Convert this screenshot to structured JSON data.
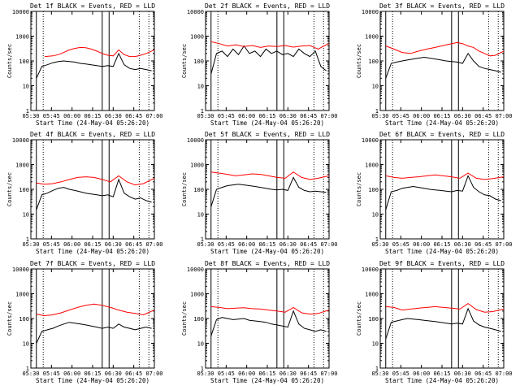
{
  "chart_data": [
    {
      "type": "line",
      "title": "Det 1f BLACK = Events, RED = LLD",
      "xlabel": "Start Time (24-May-04 05:26:20)",
      "ylabel": "Counts/sec",
      "log_y": true,
      "ylim": [
        1,
        10000
      ],
      "xlim": [
        "05:30",
        "07:00"
      ],
      "x_ticks": [
        "05:30",
        "05:45",
        "06:00",
        "06:15",
        "06:30",
        "06:45",
        "07:00"
      ],
      "y_ticks": [
        "1",
        "10",
        "100",
        "1000",
        "10000"
      ],
      "series": [
        {
          "color": "#000000",
          "x_minutes": [
            4,
            8,
            12,
            16,
            20,
            24,
            28,
            32,
            36,
            40,
            44,
            48,
            52,
            56,
            60,
            64,
            68,
            72,
            76,
            80,
            84,
            88
          ],
          "values": [
            20,
            60,
            70,
            85,
            95,
            100,
            95,
            90,
            80,
            75,
            70,
            65,
            60,
            65,
            60,
            200,
            70,
            50,
            45,
            50,
            45,
            40
          ]
        },
        {
          "color": "#ff0000",
          "x_minutes": [
            10,
            16,
            20,
            24,
            28,
            32,
            36,
            40,
            44,
            48,
            52,
            56,
            60,
            64,
            68,
            72,
            76,
            80,
            84,
            90
          ],
          "values": [
            150,
            160,
            180,
            220,
            280,
            320,
            350,
            340,
            300,
            250,
            200,
            170,
            160,
            280,
            180,
            150,
            150,
            170,
            200,
            280
          ]
        }
      ],
      "markers": {
        "solid": [
          4,
          52,
          57
        ],
        "dashed": [
          9,
          79,
          86
        ]
      }
    },
    {
      "type": "line",
      "title": "Det 2f BLACK = Events, RED = LLD",
      "xlabel": "Start Time (24-May-04 05:26:20)",
      "ylabel": "Counts/sec",
      "log_y": true,
      "ylim": [
        1,
        10000
      ],
      "xlim": [
        "05:30",
        "07:00"
      ],
      "x_ticks": [
        "05:30",
        "05:45",
        "06:00",
        "06:15",
        "06:30",
        "06:45",
        "07:00"
      ],
      "y_ticks": [
        "1",
        "10",
        "100",
        "1000",
        "10000"
      ],
      "series": [
        {
          "color": "#000000",
          "x_minutes": [
            4,
            8,
            12,
            16,
            20,
            24,
            28,
            32,
            36,
            40,
            44,
            48,
            52,
            56,
            60,
            64,
            68,
            72,
            76,
            80,
            84,
            88
          ],
          "values": [
            30,
            200,
            250,
            150,
            300,
            180,
            400,
            200,
            250,
            150,
            300,
            200,
            250,
            180,
            200,
            150,
            300,
            200,
            150,
            250,
            60,
            40
          ]
        },
        {
          "color": "#ff0000",
          "x_minutes": [
            4,
            10,
            16,
            22,
            28,
            34,
            40,
            46,
            52,
            58,
            64,
            70,
            76,
            82,
            88,
            90
          ],
          "values": [
            600,
            500,
            400,
            450,
            380,
            420,
            350,
            400,
            380,
            420,
            360,
            400,
            420,
            300,
            450,
            500
          ]
        }
      ],
      "markers": {
        "solid": [
          4,
          52,
          57
        ],
        "dashed": [
          9,
          79,
          86
        ]
      }
    },
    {
      "type": "line",
      "title": "Det 3f BLACK = Events, RED = LLD",
      "xlabel": "Start Time (24-May-04 05:26:20)",
      "ylabel": "Counts/sec",
      "log_y": true,
      "ylim": [
        1,
        10000
      ],
      "xlim": [
        "05:30",
        "07:00"
      ],
      "x_ticks": [
        "05:30",
        "05:45",
        "06:00",
        "06:15",
        "06:30",
        "06:45",
        "07:00"
      ],
      "y_ticks": [
        "1",
        "10",
        "100",
        "1000",
        "10000"
      ],
      "series": [
        {
          "color": "#000000",
          "x_minutes": [
            4,
            8,
            12,
            16,
            20,
            24,
            28,
            32,
            36,
            40,
            44,
            48,
            52,
            56,
            60,
            64,
            68,
            72,
            76,
            80,
            84,
            88
          ],
          "values": [
            20,
            80,
            90,
            100,
            110,
            120,
            130,
            140,
            130,
            120,
            110,
            100,
            95,
            90,
            80,
            200,
            100,
            60,
            50,
            45,
            40,
            35
          ]
        },
        {
          "color": "#ff0000",
          "x_minutes": [
            4,
            10,
            16,
            22,
            28,
            34,
            40,
            46,
            52,
            56,
            60,
            64,
            68,
            72,
            76,
            80,
            84,
            90
          ],
          "values": [
            400,
            300,
            220,
            200,
            250,
            300,
            350,
            420,
            500,
            550,
            500,
            400,
            350,
            250,
            200,
            160,
            170,
            250
          ]
        }
      ],
      "markers": {
        "solid": [
          4,
          52,
          57
        ],
        "dashed": [
          9,
          79,
          86
        ]
      }
    },
    {
      "type": "line",
      "title": "Det 4f BLACK = Events, RED = LLD",
      "xlabel": "Start Time (24-May-04 05:26:20)",
      "ylabel": "Counts/sec",
      "log_y": true,
      "ylim": [
        1,
        10000
      ],
      "xlim": [
        "05:30",
        "07:00"
      ],
      "x_ticks": [
        "05:30",
        "05:45",
        "06:00",
        "06:15",
        "06:30",
        "06:45",
        "07:00"
      ],
      "y_ticks": [
        "1",
        "10",
        "100",
        "1000",
        "10000"
      ],
      "series": [
        {
          "color": "#000000",
          "x_minutes": [
            4,
            8,
            12,
            16,
            20,
            24,
            28,
            32,
            36,
            40,
            44,
            48,
            52,
            56,
            60,
            64,
            68,
            72,
            76,
            80,
            84,
            88
          ],
          "values": [
            15,
            60,
            70,
            90,
            110,
            120,
            100,
            90,
            80,
            70,
            65,
            60,
            55,
            60,
            50,
            250,
            70,
            50,
            40,
            45,
            35,
            30
          ]
        },
        {
          "color": "#ff0000",
          "x_minutes": [
            4,
            10,
            16,
            22,
            28,
            34,
            40,
            46,
            52,
            58,
            64,
            70,
            76,
            82,
            90
          ],
          "values": [
            180,
            160,
            170,
            200,
            250,
            300,
            320,
            300,
            250,
            200,
            350,
            200,
            150,
            170,
            280
          ]
        }
      ],
      "markers": {
        "solid": [
          4,
          52,
          57
        ],
        "dashed": [
          9,
          79,
          86
        ]
      }
    },
    {
      "type": "line",
      "title": "Det 5f BLACK = Events, RED = LLD",
      "xlabel": "Start Time (24-May-04 05:26:20)",
      "ylabel": "Counts/sec",
      "log_y": true,
      "ylim": [
        1,
        10000
      ],
      "xlim": [
        "05:30",
        "07:00"
      ],
      "x_ticks": [
        "05:30",
        "05:45",
        "06:00",
        "06:15",
        "06:30",
        "06:45",
        "07:00"
      ],
      "y_ticks": [
        "1",
        "10",
        "100",
        "1000",
        "10000"
      ],
      "series": [
        {
          "color": "#000000",
          "x_minutes": [
            4,
            8,
            12,
            16,
            20,
            24,
            28,
            32,
            36,
            40,
            44,
            48,
            52,
            56,
            60,
            64,
            68,
            72,
            76,
            80,
            84,
            88
          ],
          "values": [
            20,
            100,
            120,
            140,
            150,
            160,
            150,
            140,
            130,
            120,
            110,
            100,
            95,
            100,
            90,
            300,
            120,
            90,
            80,
            85,
            80,
            75
          ]
        },
        {
          "color": "#ff0000",
          "x_minutes": [
            4,
            10,
            16,
            22,
            28,
            34,
            40,
            46,
            52,
            58,
            64,
            70,
            76,
            82,
            90
          ],
          "values": [
            500,
            450,
            400,
            350,
            380,
            420,
            400,
            350,
            300,
            280,
            500,
            300,
            250,
            280,
            350
          ]
        }
      ],
      "markers": {
        "solid": [
          4,
          52,
          57
        ],
        "dashed": [
          9,
          79,
          86
        ]
      }
    },
    {
      "type": "line",
      "title": "Det 6f BLACK = Events, RED = LLD",
      "xlabel": "Start Time (24-May-04 05:26:20)",
      "ylabel": "Counts/sec",
      "log_y": true,
      "ylim": [
        1,
        10000
      ],
      "xlim": [
        "05:30",
        "07:00"
      ],
      "x_ticks": [
        "05:30",
        "05:45",
        "06:00",
        "06:15",
        "06:30",
        "06:45",
        "07:00"
      ],
      "y_ticks": [
        "1",
        "10",
        "100",
        "1000",
        "10000"
      ],
      "series": [
        {
          "color": "#000000",
          "x_minutes": [
            4,
            8,
            12,
            16,
            20,
            24,
            28,
            32,
            36,
            40,
            44,
            48,
            52,
            56,
            60,
            64,
            68,
            72,
            76,
            80,
            84,
            88
          ],
          "values": [
            15,
            80,
            90,
            110,
            120,
            130,
            120,
            110,
            100,
            95,
            90,
            85,
            80,
            90,
            85,
            350,
            120,
            80,
            60,
            55,
            40,
            35
          ]
        },
        {
          "color": "#ff0000",
          "x_minutes": [
            4,
            10,
            16,
            22,
            28,
            34,
            40,
            46,
            52,
            58,
            64,
            70,
            76,
            82,
            90
          ],
          "values": [
            350,
            300,
            280,
            300,
            320,
            350,
            380,
            350,
            320,
            280,
            450,
            280,
            250,
            270,
            320
          ]
        }
      ],
      "markers": {
        "solid": [
          4,
          52,
          57
        ],
        "dashed": [
          9,
          79,
          86
        ]
      }
    },
    {
      "type": "line",
      "title": "Det 7f BLACK = Events, RED = LLD",
      "xlabel": "Start Time (24-May-04 05:26:20)",
      "ylabel": "Counts/sec",
      "log_y": true,
      "ylim": [
        1,
        10000
      ],
      "xlim": [
        "05:30",
        "07:00"
      ],
      "x_ticks": [
        "05:30",
        "05:45",
        "06:00",
        "06:15",
        "06:30",
        "06:45",
        "07:00"
      ],
      "y_ticks": [
        "1",
        "10",
        "100",
        "1000",
        "10000"
      ],
      "series": [
        {
          "color": "#000000",
          "x_minutes": [
            4,
            8,
            12,
            16,
            20,
            24,
            28,
            32,
            36,
            40,
            44,
            48,
            52,
            56,
            60,
            64,
            68,
            72,
            76,
            80,
            84,
            88
          ],
          "values": [
            10,
            30,
            35,
            40,
            50,
            60,
            70,
            65,
            60,
            55,
            50,
            45,
            40,
            45,
            40,
            60,
            45,
            40,
            35,
            40,
            45,
            40
          ]
        },
        {
          "color": "#ff0000",
          "x_minutes": [
            4,
            10,
            16,
            22,
            28,
            34,
            40,
            46,
            52,
            58,
            64,
            70,
            76,
            82,
            90
          ],
          "values": [
            150,
            130,
            140,
            170,
            220,
            280,
            340,
            380,
            340,
            280,
            220,
            180,
            160,
            140,
            220
          ]
        }
      ],
      "markers": {
        "solid": [
          4,
          52,
          57
        ],
        "dashed": [
          9,
          79,
          86
        ]
      }
    },
    {
      "type": "line",
      "title": "Det 8f BLACK = Events, RED = LLD",
      "xlabel": "Start Time (24-May-04 05:26:20)",
      "ylabel": "Counts/sec",
      "log_y": true,
      "ylim": [
        1,
        10000
      ],
      "xlim": [
        "05:30",
        "07:00"
      ],
      "x_ticks": [
        "05:30",
        "05:45",
        "06:00",
        "06:15",
        "06:30",
        "06:45",
        "07:00"
      ],
      "y_ticks": [
        "1",
        "10",
        "100",
        "1000",
        "10000"
      ],
      "series": [
        {
          "color": "#000000",
          "x_minutes": [
            4,
            8,
            12,
            16,
            20,
            24,
            28,
            32,
            36,
            40,
            44,
            48,
            52,
            56,
            60,
            64,
            68,
            72,
            76,
            80,
            84,
            88
          ],
          "values": [
            20,
            90,
            110,
            100,
            90,
            95,
            100,
            85,
            80,
            75,
            70,
            60,
            55,
            50,
            45,
            200,
            60,
            40,
            35,
            30,
            35,
            30
          ]
        },
        {
          "color": "#ff0000",
          "x_minutes": [
            4,
            10,
            16,
            22,
            28,
            34,
            40,
            46,
            52,
            58,
            64,
            70,
            76,
            82,
            90
          ],
          "values": [
            300,
            280,
            250,
            260,
            270,
            250,
            240,
            220,
            200,
            180,
            280,
            170,
            150,
            160,
            220
          ]
        }
      ],
      "markers": {
        "solid": [
          4,
          52,
          57
        ],
        "dashed": [
          9,
          79,
          86
        ]
      }
    },
    {
      "type": "line",
      "title": "Det 9f BLACK = Events, RED = LLD",
      "xlabel": "Start Time (24-May-04 05:26:20)",
      "ylabel": "Counts/sec",
      "log_y": true,
      "ylim": [
        1,
        10000
      ],
      "xlim": [
        "05:30",
        "07:00"
      ],
      "x_ticks": [
        "05:30",
        "05:45",
        "06:00",
        "06:15",
        "06:30",
        "06:45",
        "07:00"
      ],
      "y_ticks": [
        "1",
        "10",
        "100",
        "1000",
        "10000"
      ],
      "series": [
        {
          "color": "#000000",
          "x_minutes": [
            4,
            8,
            12,
            16,
            20,
            24,
            28,
            32,
            36,
            40,
            44,
            48,
            52,
            56,
            60,
            64,
            68,
            72,
            76,
            80,
            84,
            88
          ],
          "values": [
            15,
            70,
            80,
            90,
            100,
            95,
            90,
            85,
            80,
            75,
            70,
            65,
            60,
            65,
            60,
            250,
            80,
            55,
            45,
            40,
            35,
            30
          ]
        },
        {
          "color": "#ff0000",
          "x_minutes": [
            4,
            10,
            16,
            22,
            28,
            34,
            40,
            46,
            52,
            58,
            64,
            70,
            76,
            82,
            90
          ],
          "values": [
            300,
            280,
            220,
            240,
            260,
            280,
            300,
            280,
            260,
            240,
            400,
            230,
            180,
            190,
            240
          ]
        }
      ],
      "markers": {
        "solid": [
          4,
          52,
          57
        ],
        "dashed": [
          9,
          79,
          86
        ]
      }
    }
  ]
}
